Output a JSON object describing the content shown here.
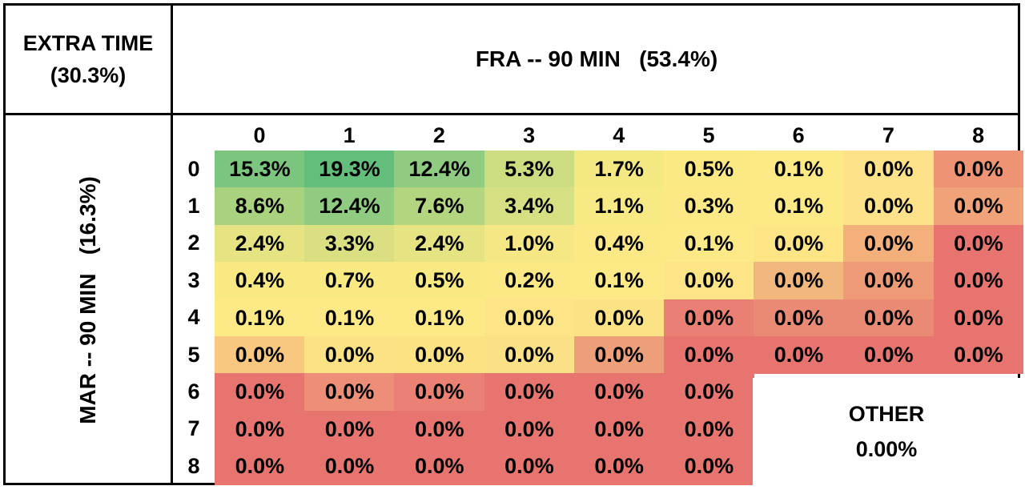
{
  "corner": {
    "line1": "EXTRA TIME",
    "line2": "(30.3%)"
  },
  "col_title": "FRA -- 90 MIN   (53.4%)",
  "row_title": "MAR -- 90 MIN   (16.3%)",
  "other": {
    "label": "OTHER",
    "value": "0.00%"
  },
  "colors": {
    "green_dark": "#63be7b",
    "yellow": "#fdeb84",
    "pale_yellow": "#f8e98f",
    "orange": "#f3a875",
    "red": "#e87470"
  },
  "chart_data": {
    "type": "heatmap",
    "title": "FRA -- 90 MIN   (53.4%)",
    "xlabel": "FRA -- 90 MIN   (53.4%)",
    "ylabel": "MAR -- 90 MIN   (16.3%)",
    "x_categories": [
      "0",
      "1",
      "2",
      "3",
      "4",
      "5",
      "6",
      "7",
      "8"
    ],
    "y_categories": [
      "0",
      "1",
      "2",
      "3",
      "4",
      "5",
      "6",
      "7",
      "8"
    ],
    "values": [
      [
        "15.3%",
        "19.3%",
        "12.4%",
        "5.3%",
        "1.7%",
        "0.5%",
        "0.1%",
        "0.0%",
        "0.0%"
      ],
      [
        "8.6%",
        "12.4%",
        "7.6%",
        "3.4%",
        "1.1%",
        "0.3%",
        "0.1%",
        "0.0%",
        "0.0%"
      ],
      [
        "2.4%",
        "3.3%",
        "2.4%",
        "1.0%",
        "0.4%",
        "0.1%",
        "0.0%",
        "0.0%",
        "0.0%"
      ],
      [
        "0.4%",
        "0.7%",
        "0.5%",
        "0.2%",
        "0.1%",
        "0.0%",
        "0.0%",
        "0.0%",
        "0.0%"
      ],
      [
        "0.1%",
        "0.1%",
        "0.1%",
        "0.0%",
        "0.0%",
        "0.0%",
        "0.0%",
        "0.0%",
        "0.0%"
      ],
      [
        "0.0%",
        "0.0%",
        "0.0%",
        "0.0%",
        "0.0%",
        "0.0%",
        "0.0%",
        "0.0%",
        "0.0%"
      ],
      [
        "0.0%",
        "0.0%",
        "0.0%",
        "0.0%",
        "0.0%",
        "0.0%",
        null,
        null,
        null
      ],
      [
        "0.0%",
        "0.0%",
        "0.0%",
        "0.0%",
        "0.0%",
        "0.0%",
        null,
        null,
        null
      ],
      [
        "0.0%",
        "0.0%",
        "0.0%",
        "0.0%",
        "0.0%",
        "0.0%",
        null,
        null,
        null
      ]
    ],
    "cell_colors": [
      [
        "#7cc57f",
        "#63be7b",
        "#8fcb81",
        "#cbdc81",
        "#f4e883",
        "#fbea84",
        "#fde985",
        "#fde28a",
        "#ee9474"
      ],
      [
        "#a9d27f",
        "#8fcb81",
        "#b3d580",
        "#d6df81",
        "#f7e983",
        "#fce985",
        "#fde985",
        "#fde28a",
        "#f0a379"
      ],
      [
        "#e6e382",
        "#dae081",
        "#e6e382",
        "#f5e784",
        "#fce985",
        "#fde985",
        "#fde485",
        "#f3b07b",
        "#e87470"
      ],
      [
        "#f9e983",
        "#f8e983",
        "#f9e983",
        "#fce985",
        "#fde985",
        "#fde486",
        "#f2b77d",
        "#ee9a77",
        "#e87470"
      ],
      [
        "#fde985",
        "#fde985",
        "#fde985",
        "#fde486",
        "#fbe285",
        "#e98073",
        "#e98a75",
        "#e98a75",
        "#e87470"
      ],
      [
        "#f8c780",
        "#fbe285",
        "#fde284",
        "#fbe185",
        "#ed9f7a",
        "#e87470",
        "#e87470",
        "#e87470",
        "#e87470"
      ],
      [
        "#e87470",
        "#ec8e78",
        "#ea8174",
        "#e87470",
        "#e87470",
        "#e87470",
        null,
        null,
        null
      ],
      [
        "#e87470",
        "#e87470",
        "#e87470",
        "#e87470",
        "#e87470",
        "#e87470",
        null,
        null,
        null
      ],
      [
        "#e87470",
        "#e87470",
        "#e87470",
        "#e87470",
        "#e87470",
        "#e87470",
        null,
        null,
        null
      ]
    ],
    "other_label": "OTHER",
    "other_value": "0.00%"
  }
}
